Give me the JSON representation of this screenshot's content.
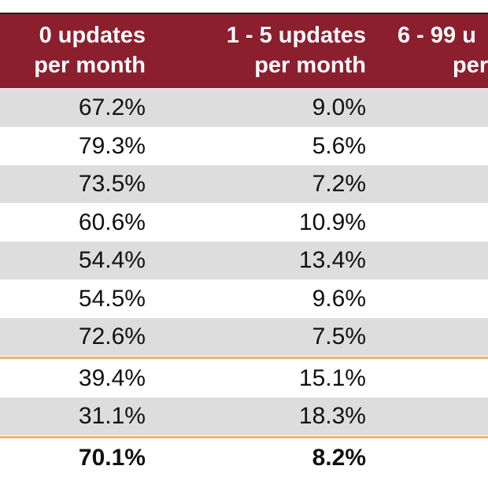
{
  "table": {
    "header": [
      [
        "0 updates",
        "per month"
      ],
      [
        "1 - 5 updates",
        "per month"
      ],
      [
        "6 - 99 u",
        "per"
      ]
    ],
    "rows": [
      [
        "67.2%",
        "9.0%"
      ],
      [
        "79.3%",
        "5.6%"
      ],
      [
        "73.5%",
        "7.2%"
      ],
      [
        "60.6%",
        "10.9%"
      ],
      [
        "54.4%",
        "13.4%"
      ],
      [
        "54.5%",
        "9.6%"
      ],
      [
        "72.6%",
        "7.5%"
      ],
      [
        "39.4%",
        "15.1%"
      ],
      [
        "31.1%",
        "18.3%"
      ]
    ],
    "total": [
      "70.1%",
      "8.2%"
    ]
  }
}
